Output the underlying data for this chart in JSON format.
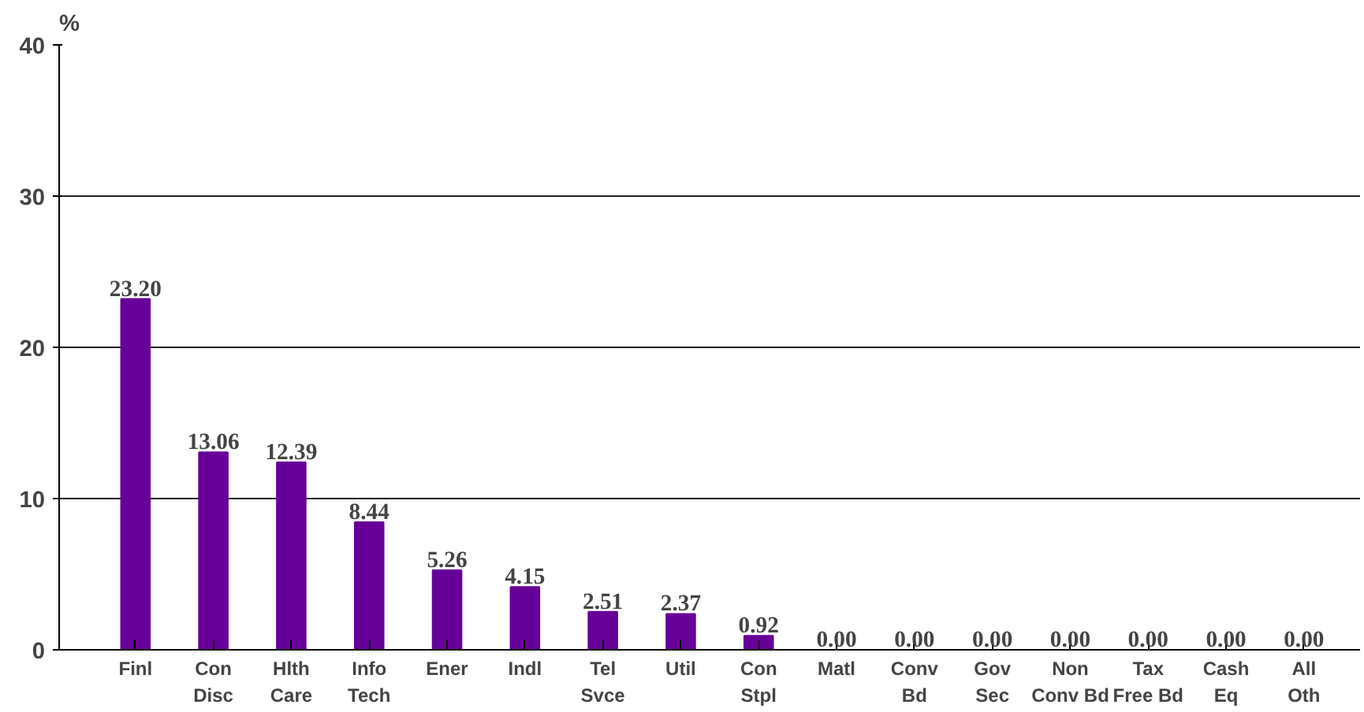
{
  "chart_data": {
    "type": "bar",
    "ylabel": "%",
    "categories": [
      "Finl",
      "Con\nDisc",
      "Hlth\nCare",
      "Info\nTech",
      "Ener",
      "Indl",
      "Tel\nSvce",
      "Util",
      "Con\nStpl",
      "Matl",
      "Conv\nBd",
      "Gov\nSec",
      "Non\nConv Bd",
      "Tax\nFree Bd",
      "Cash\nEq",
      "All\nOth"
    ],
    "values": [
      23.2,
      13.06,
      12.39,
      8.44,
      5.26,
      4.15,
      2.51,
      2.37,
      0.92,
      0.0,
      0.0,
      0.0,
      0.0,
      0.0,
      0.0,
      0.0
    ],
    "value_labels": [
      "23.20",
      "13.06",
      "12.39",
      "8.44",
      "5.26",
      "4.15",
      "2.51",
      "2.37",
      "0.92",
      "0.00",
      "0.00",
      "0.00",
      "0.00",
      "0.00",
      "0.00",
      "0.00"
    ],
    "color": "#660099",
    "ylim": [
      0,
      40
    ],
    "yticks": [
      0,
      10,
      20,
      30,
      40
    ],
    "grid": "y"
  }
}
